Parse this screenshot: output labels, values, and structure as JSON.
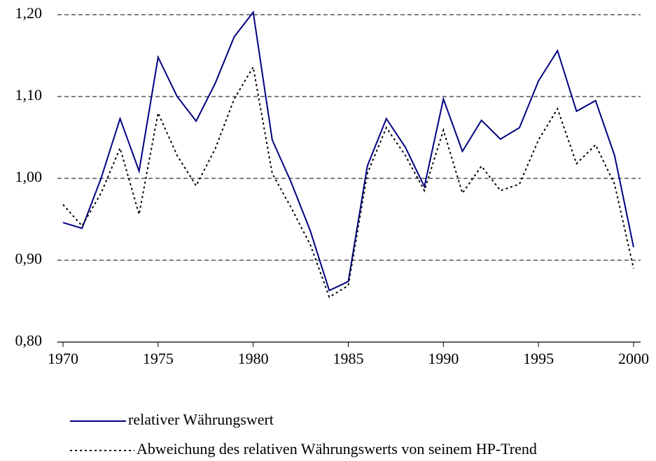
{
  "chart_data": {
    "type": "line",
    "x": [
      1970,
      1971,
      1972,
      1973,
      1974,
      1975,
      1976,
      1977,
      1978,
      1979,
      1980,
      1981,
      1982,
      1983,
      1984,
      1985,
      1986,
      1987,
      1988,
      1989,
      1990,
      1991,
      1992,
      1993,
      1994,
      1995,
      1996,
      1997,
      1998,
      1999,
      2000
    ],
    "series": [
      {
        "name": "relativer Währungswert",
        "color": "#000080",
        "dash": "solid",
        "values": [
          0.946,
          0.939,
          1.0,
          1.073,
          1.009,
          1.148,
          1.1,
          1.07,
          1.116,
          1.173,
          1.203,
          1.047,
          0.995,
          0.936,
          0.863,
          0.874,
          1.015,
          1.073,
          1.038,
          0.99,
          1.097,
          1.033,
          1.071,
          1.048,
          1.062,
          1.119,
          1.156,
          1.082,
          1.095,
          1.028,
          0.916
        ]
      },
      {
        "name": "Abweichung des relativen Währungswerts von seinem HP-Trend",
        "color": "#000000",
        "dash": "dotted",
        "values": [
          0.968,
          0.942,
          0.982,
          1.037,
          0.956,
          1.08,
          1.028,
          0.991,
          1.036,
          1.097,
          1.136,
          1.006,
          0.964,
          0.919,
          0.855,
          0.869,
          1.006,
          1.062,
          1.028,
          0.985,
          1.059,
          0.982,
          1.015,
          0.985,
          0.993,
          1.047,
          1.085,
          1.018,
          1.041,
          0.993,
          0.89
        ]
      }
    ],
    "xlim": [
      1970,
      2000
    ],
    "xticks": [
      1970,
      1975,
      1980,
      1985,
      1990,
      1995,
      2000
    ],
    "ylim": [
      0.8,
      1.2
    ],
    "yticks": [
      {
        "value": 0.8,
        "label": "0,80"
      },
      {
        "value": 0.9,
        "label": "0,90"
      },
      {
        "value": 1.0,
        "label": "1,00"
      },
      {
        "value": 1.1,
        "label": "1,10"
      },
      {
        "value": 1.2,
        "label": "1,20"
      }
    ],
    "grid": true,
    "legend": "bottom"
  }
}
